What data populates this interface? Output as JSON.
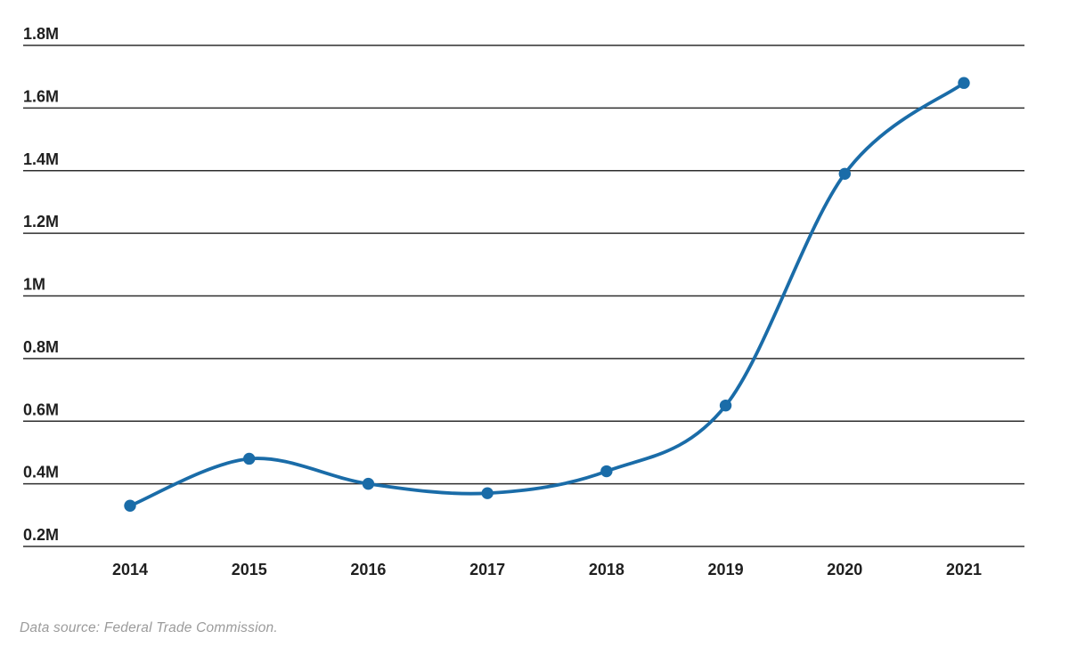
{
  "chart_data": {
    "type": "line",
    "title": "",
    "categories": [
      "2014",
      "2015",
      "2016",
      "2017",
      "2018",
      "2019",
      "2020",
      "2021"
    ],
    "series": [
      {
        "name": "",
        "values": [
          0.33,
          0.48,
          0.4,
          0.37,
          0.44,
          0.65,
          1.39,
          1.68
        ]
      }
    ],
    "value_unit": "millions",
    "ylim": [
      0.2,
      1.8
    ],
    "yticks": [
      0.2,
      0.4,
      0.6,
      0.8,
      1.0,
      1.2,
      1.4,
      1.6,
      1.8
    ],
    "ytick_labels": [
      "0.2M",
      "0.4M",
      "0.6M",
      "0.8M",
      "1M",
      "1.2M",
      "1.4M",
      "1.6M",
      "1.8M"
    ],
    "grid": "horizontal",
    "legend": "none",
    "line_color": "#1a6ca8",
    "gridline_color": "#2e2e2e",
    "tick_text_color": "#1f1f1f",
    "marker": "circle",
    "curve": "smooth"
  },
  "footer": {
    "source_text": "Data source: Federal Trade Commission."
  }
}
